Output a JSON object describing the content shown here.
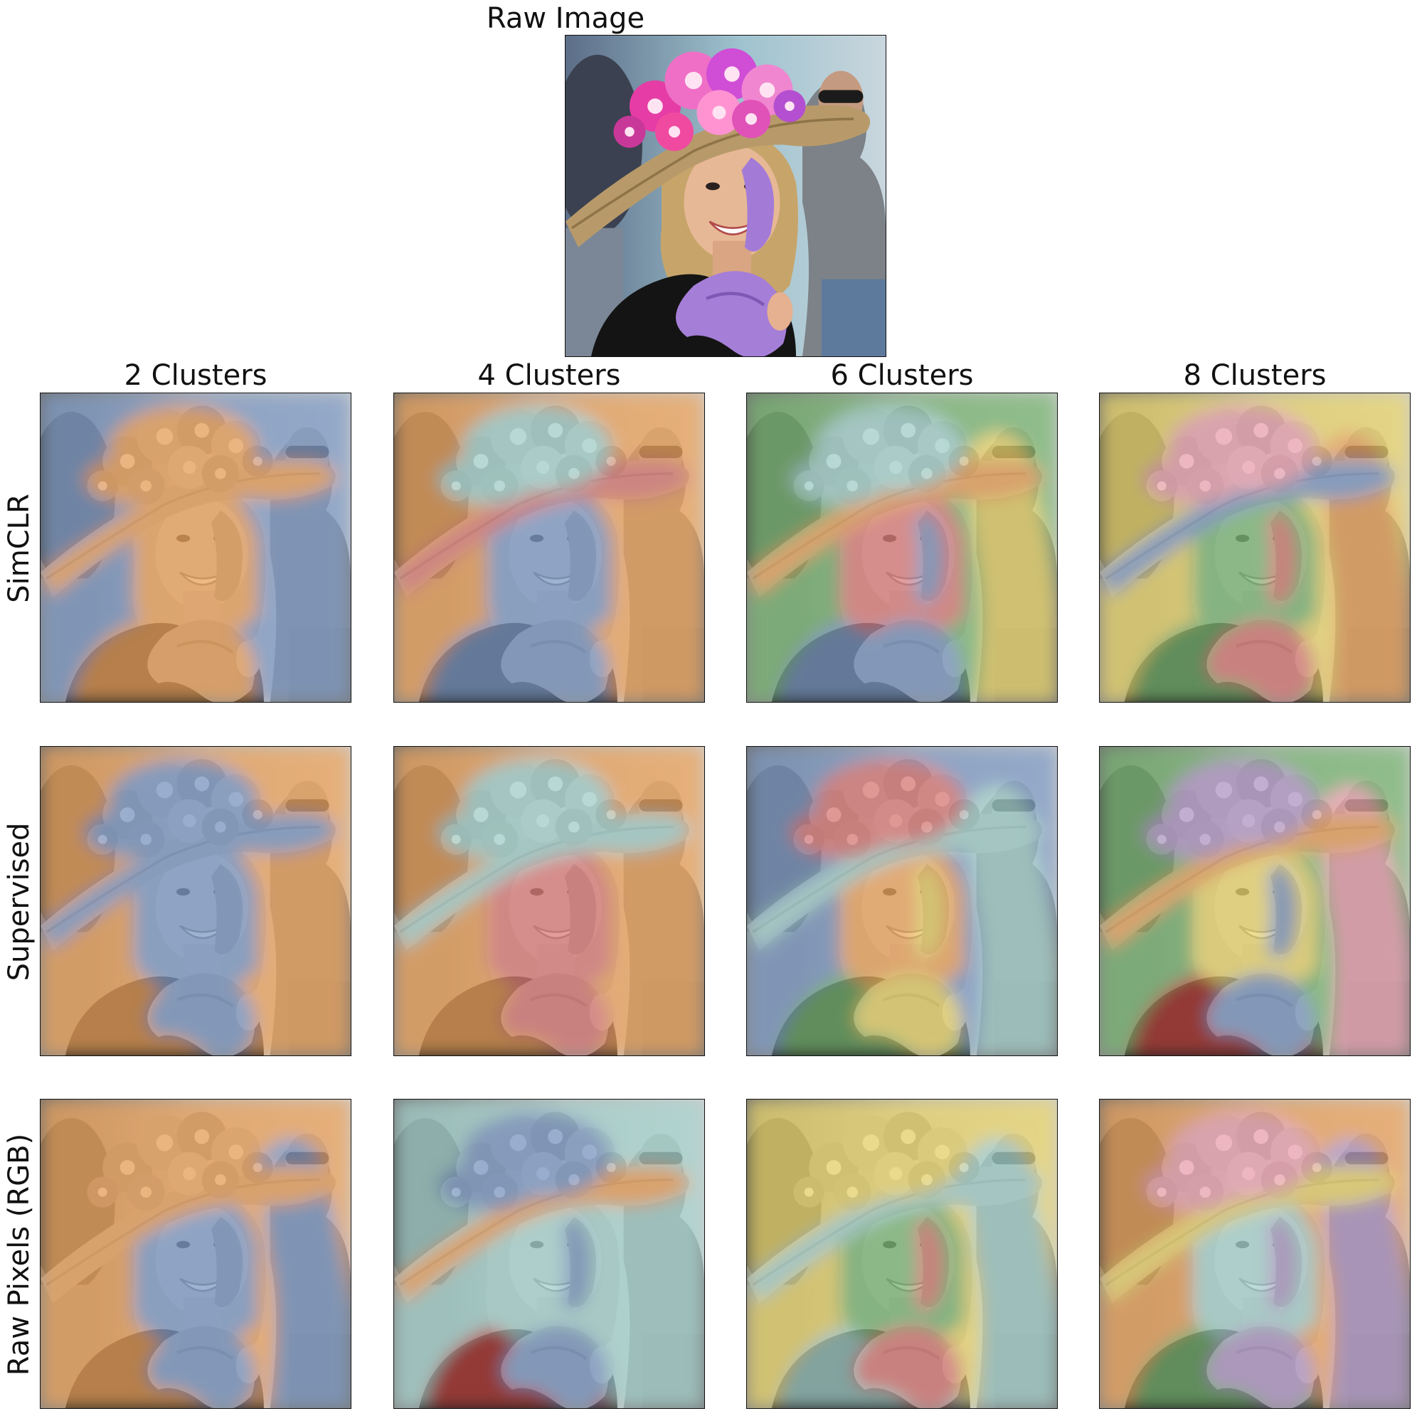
{
  "figure": {
    "raw_title": "Raw Image",
    "column_titles": [
      "2 Clusters",
      "4 Clusters",
      "6 Clusters",
      "8 Clusters"
    ],
    "row_labels": [
      "SimCLR",
      "Supervised",
      "Raw Pixels (RGB)"
    ]
  },
  "colors": {
    "blue": "#7f9cc8",
    "orange": "#f0a55c",
    "teal": "#a8d6d0",
    "red": "#e07d79",
    "green": "#79b873",
    "yellow": "#eed96c",
    "pink": "#f2a7b5",
    "purple": "#b79ccc",
    "dark_red": "#c0453f"
  },
  "segmentations": [
    [
      {
        "background": "blue",
        "hat": "orange",
        "flowers": "orange",
        "face": "orange",
        "bow": "orange",
        "shirt": "orange",
        "man": "blue"
      },
      {
        "background": "orange",
        "hat": "red",
        "flowers": "teal",
        "face": "blue",
        "bow": "blue",
        "shirt": "blue",
        "man": "orange"
      },
      {
        "background": "green",
        "hat": "orange",
        "flowers": "teal",
        "face": "red",
        "bow": "blue",
        "shirt": "blue",
        "man": "yellow"
      },
      {
        "background": "yellow",
        "hat": "blue",
        "flowers": "pink",
        "face": "green",
        "bow": "red",
        "shirt": "green",
        "man": "orange"
      }
    ],
    [
      {
        "background": "orange",
        "hat": "blue",
        "flowers": "blue",
        "face": "blue",
        "bow": "blue",
        "shirt": "orange",
        "man": "orange"
      },
      {
        "background": "orange",
        "hat": "teal",
        "flowers": "teal",
        "face": "red",
        "bow": "red",
        "shirt": "orange",
        "man": "orange"
      },
      {
        "background": "blue",
        "hat": "teal",
        "flowers": "red",
        "face": "orange",
        "bow": "yellow",
        "shirt": "green",
        "man": "teal"
      },
      {
        "background": "green",
        "hat": "orange",
        "flowers": "purple",
        "face": "yellow",
        "bow": "blue",
        "shirt": "dark_red",
        "man": "pink"
      }
    ],
    [
      {
        "background": "orange",
        "hat": "orange",
        "flowers": "orange",
        "face": "blue",
        "bow": "blue",
        "shirt": "orange",
        "man": "blue"
      },
      {
        "background": "teal",
        "hat": "orange",
        "flowers": "blue",
        "face": "teal",
        "bow": "blue",
        "shirt": "dark_red",
        "man": "teal"
      },
      {
        "background": "yellow",
        "hat": "teal",
        "flowers": "yellow",
        "face": "green",
        "bow": "red",
        "shirt": "teal",
        "man": "teal"
      },
      {
        "background": "orange",
        "hat": "yellow",
        "flowers": "pink",
        "face": "teal",
        "bow": "purple",
        "shirt": "green",
        "man": "purple"
      }
    ]
  ]
}
